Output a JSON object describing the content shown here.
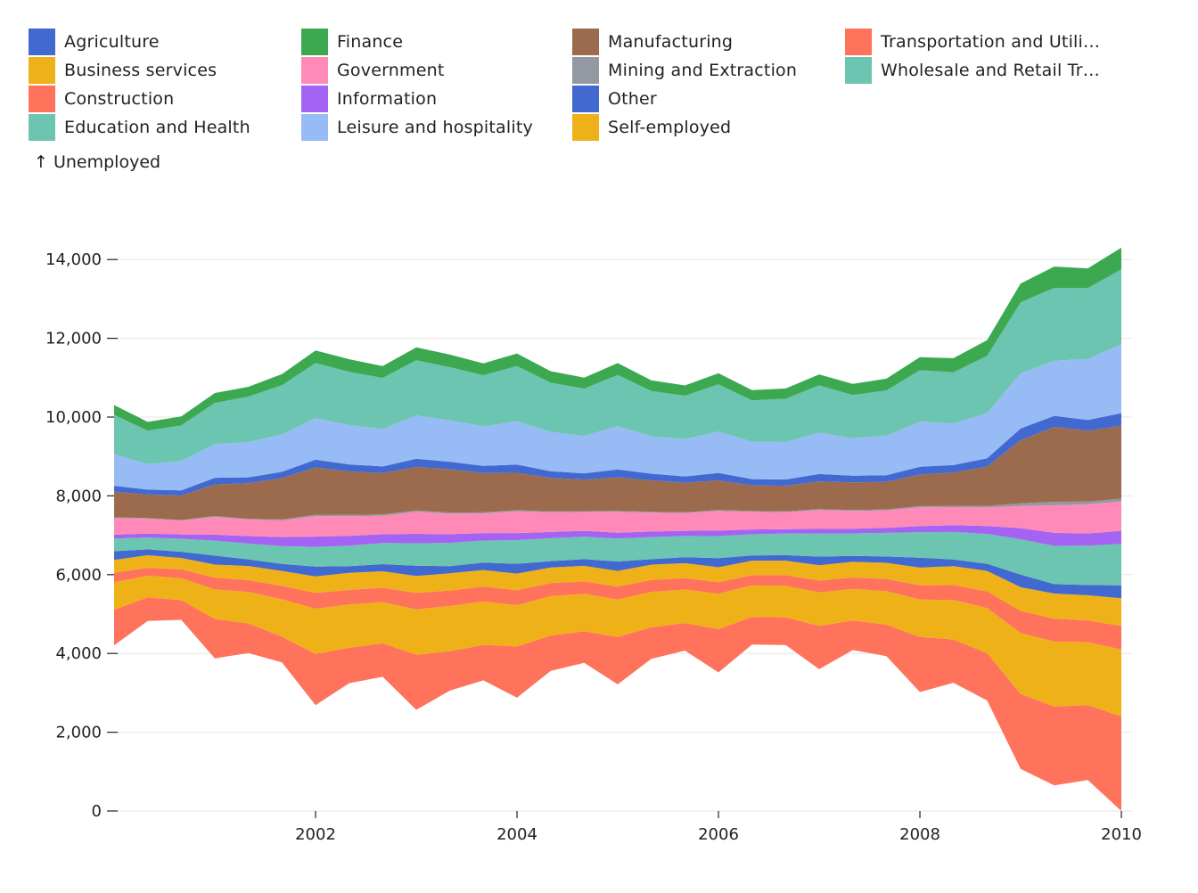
{
  "chart_data": {
    "type": "area",
    "stacked": true,
    "offset": "wiggle",
    "ylabel": "↑ Unemployed",
    "ylim": [
      0,
      15700
    ],
    "y_ticks": [
      0,
      2000,
      4000,
      6000,
      8000,
      10000,
      12000,
      14000
    ],
    "y_tick_labels": [
      "0",
      "2,000",
      "4,000",
      "6,000",
      "8,000",
      "10,000",
      "12,000",
      "14,000"
    ],
    "x_ticks": [
      "2002",
      "2004",
      "2006",
      "2008",
      "2010"
    ],
    "grid": true,
    "legend_position": "top",
    "x": [
      "2000-01",
      "2000-05",
      "2000-09",
      "2001-01",
      "2001-05",
      "2001-09",
      "2002-01",
      "2002-05",
      "2002-09",
      "2003-01",
      "2003-05",
      "2003-09",
      "2004-01",
      "2004-05",
      "2004-09",
      "2005-01",
      "2005-05",
      "2005-09",
      "2006-01",
      "2006-05",
      "2006-09",
      "2007-01",
      "2007-05",
      "2007-09",
      "2008-01",
      "2008-05",
      "2008-09",
      "2009-01",
      "2009-05",
      "2009-09",
      "2010-01"
    ],
    "series": [
      {
        "name": "Agriculture",
        "legend": "Agriculture",
        "color": "#4269d0",
        "values": [
          220,
          150,
          160,
          230,
          170,
          180,
          250,
          170,
          180,
          260,
          180,
          190,
          250,
          160,
          170,
          240,
          140,
          150,
          230,
          130,
          140,
          220,
          150,
          160,
          250,
          170,
          180,
          320,
          240,
          260,
          330
        ]
      },
      {
        "name": "Business services",
        "legend": "Business services",
        "color": "#efb118",
        "values": [
          700,
          550,
          560,
          750,
          800,
          950,
          1150,
          1100,
          1050,
          1150,
          1150,
          1100,
          1050,
          1000,
          950,
          950,
          900,
          850,
          900,
          800,
          800,
          850,
          800,
          850,
          950,
          1000,
          1150,
          1550,
          1650,
          1600,
          1700
        ]
      },
      {
        "name": "Construction",
        "legend": "Construction",
        "color": "#ff725c",
        "values": [
          900,
          600,
          500,
          1000,
          750,
          650,
          1300,
          900,
          850,
          1400,
          1000,
          900,
          1300,
          900,
          800,
          1200,
          800,
          700,
          1100,
          700,
          700,
          1100,
          750,
          800,
          1400,
          1100,
          1200,
          1900,
          2000,
          1900,
          2400
        ]
      },
      {
        "name": "Education and Health",
        "legend": "Education and Health",
        "color": "#6cc5b0",
        "values": [
          320,
          300,
          330,
          380,
          400,
          450,
          500,
          520,
          540,
          570,
          590,
          560,
          600,
          580,
          570,
          580,
          560,
          540,
          560,
          540,
          550,
          580,
          570,
          600,
          650,
          700,
          760,
          900,
          970,
          1000,
          1050
        ]
      },
      {
        "name": "Finance",
        "legend": "Finance",
        "color": "#3ca951",
        "values": [
          250,
          220,
          230,
          250,
          250,
          280,
          320,
          320,
          300,
          330,
          320,
          300,
          320,
          290,
          280,
          300,
          270,
          260,
          280,
          260,
          260,
          280,
          280,
          300,
          330,
          360,
          400,
          480,
          540,
          500,
          550
        ]
      },
      {
        "name": "Government",
        "legend": "Government",
        "color": "#ff8ab7",
        "values": [
          420,
          380,
          350,
          450,
          420,
          420,
          520,
          500,
          470,
          560,
          520,
          500,
          550,
          500,
          480,
          530,
          480,
          450,
          500,
          450,
          430,
          480,
          450,
          440,
          480,
          460,
          470,
          560,
          700,
          740,
          750
        ]
      },
      {
        "name": "Information",
        "legend": "Information",
        "color": "#a463f2",
        "values": [
          100,
          100,
          110,
          150,
          190,
          230,
          260,
          250,
          220,
          240,
          220,
          190,
          180,
          160,
          150,
          150,
          140,
          130,
          140,
          120,
          110,
          120,
          120,
          130,
          150,
          170,
          200,
          280,
          330,
          310,
          330
        ]
      },
      {
        "name": "Leisure and hospitality",
        "legend": "Leisure and hospitality",
        "color": "#97bbf5",
        "values": [
          800,
          650,
          750,
          850,
          900,
          950,
          1050,
          1000,
          950,
          1100,
          1050,
          1000,
          1100,
          1000,
          950,
          1100,
          950,
          950,
          1050,
          950,
          950,
          1050,
          950,
          1000,
          1150,
          1050,
          1150,
          1400,
          1400,
          1550,
          1750
        ]
      },
      {
        "name": "Manufacturing",
        "legend": "Manufacturing",
        "color": "#9c6b4e",
        "values": [
          650,
          600,
          620,
          800,
          900,
          1050,
          1200,
          1100,
          1050,
          1100,
          1100,
          1000,
          950,
          850,
          800,
          850,
          800,
          750,
          750,
          650,
          650,
          700,
          700,
          700,
          800,
          850,
          1000,
          1600,
          1900,
          1800,
          1850
        ]
      },
      {
        "name": "Mining and Extraction",
        "legend": "Mining and Extraction",
        "color": "#9498a0",
        "values": [
          20,
          15,
          15,
          25,
          20,
          25,
          35,
          35,
          30,
          35,
          30,
          25,
          30,
          20,
          20,
          25,
          20,
          20,
          25,
          20,
          20,
          25,
          25,
          25,
          30,
          30,
          40,
          70,
          90,
          70,
          70
        ]
      },
      {
        "name": "Other",
        "legend": "Other",
        "color": "#4269d0",
        "values": [
          150,
          120,
          130,
          170,
          150,
          160,
          200,
          180,
          170,
          210,
          190,
          180,
          210,
          170,
          160,
          200,
          170,
          160,
          190,
          160,
          160,
          190,
          170,
          170,
          200,
          190,
          210,
          300,
          280,
          270,
          320
        ]
      },
      {
        "name": "Self-employed",
        "legend": "Self-employed",
        "color": "#efb118",
        "values": [
          330,
          320,
          290,
          330,
          360,
          380,
          420,
          430,
          420,
          430,
          440,
          420,
          420,
          400,
          390,
          400,
          390,
          380,
          380,
          370,
          370,
          390,
          400,
          410,
          450,
          480,
          520,
          600,
          640,
          640,
          700
        ]
      },
      {
        "name": "Transportation and Utilities",
        "legend": "Transportation and Utili…",
        "color": "#ff725c",
        "values": [
          240,
          200,
          220,
          300,
          300,
          340,
          400,
          370,
          360,
          420,
          390,
          380,
          380,
          330,
          320,
          330,
          300,
          290,
          290,
          260,
          270,
          300,
          290,
          310,
          360,
          380,
          420,
          560,
          580,
          550,
          600
        ]
      },
      {
        "name": "Wholesale and Retail Trade",
        "legend": "Wholesale and Retail Tr…",
        "color": "#6cc5b0",
        "values": [
          1000,
          850,
          900,
          1050,
          1150,
          1250,
          1400,
          1350,
          1300,
          1400,
          1350,
          1300,
          1400,
          1250,
          1200,
          1300,
          1150,
          1100,
          1200,
          1050,
          1100,
          1200,
          1100,
          1150,
          1300,
          1300,
          1450,
          1800,
          1850,
          1800,
          1900
        ]
      }
    ],
    "stack_order_bottom_to_top": [
      "Construction",
      "Business services",
      "Transportation and Utilities",
      "Self-employed",
      "Agriculture",
      "Education and Health",
      "Information",
      "Government",
      "Mining and Extraction",
      "Manufacturing",
      "Other",
      "Leisure and hospitality",
      "Wholesale and Retail Trade",
      "Finance"
    ]
  }
}
